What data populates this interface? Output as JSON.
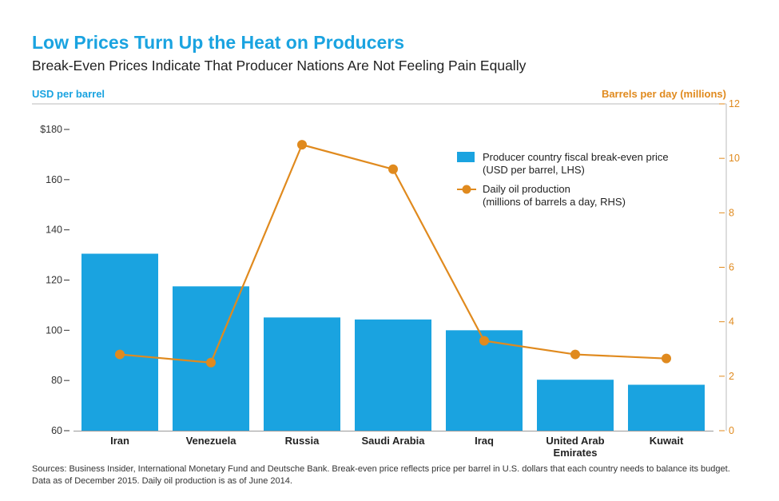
{
  "header": {
    "title": "Low Prices Turn Up the Heat on Producers",
    "subtitle": "Break-Even Prices Indicate That Producer Nations Are Not Feeling Pain Equally"
  },
  "axis_units": {
    "left": "USD per barrel",
    "right": "Barrels per day (millions)"
  },
  "footer": {
    "sources": "Sources: Business Insider, International Monetary Fund and Deutsche Bank. Break-even price reflects price per barrel in U.S. dollars that each country needs to balance its budget. Data as of December 2015. Daily oil production is as of June 2014."
  },
  "colors": {
    "bar": "#1aa3e0",
    "line": "#e08a1e",
    "title": "#1aa3e0",
    "axis": "#999999"
  },
  "chart_data": {
    "type": "bar",
    "title": "Low Prices Turn Up the Heat on Producers",
    "subtitle": "Break-Even Prices Indicate That Producer Nations Are Not Feeling Pain Equally",
    "categories": [
      "Iran",
      "Venezuela",
      "Russia",
      "Saudi Arabia",
      "Iraq",
      "United Arab Emirates",
      "Kuwait"
    ],
    "category_labels": [
      [
        "Iran"
      ],
      [
        "Venezuela"
      ],
      [
        "Russia"
      ],
      [
        "Saudi Arabia"
      ],
      [
        "Iraq"
      ],
      [
        "United Arab",
        "Emirates"
      ],
      [
        "Kuwait"
      ]
    ],
    "series": [
      {
        "name": "Producer country fiscal break-even price (USD per barrel, LHS)",
        "legend_lines": [
          "Producer country fiscal break-even price",
          "(USD per barrel, LHS)"
        ],
        "type": "bar",
        "axis": "left",
        "values": [
          130.5,
          117.5,
          105.1,
          104.3,
          100.0,
          80.3,
          78.3
        ]
      },
      {
        "name": "Daily oil production (millions of barrels a day, RHS)",
        "legend_lines": [
          "Daily oil production",
          "(millions of barrels a day, RHS)"
        ],
        "type": "line",
        "axis": "right",
        "values": [
          2.8,
          2.5,
          10.5,
          9.6,
          3.3,
          2.8,
          2.65
        ]
      }
    ],
    "y_left": {
      "label": "USD per barrel",
      "ylim": [
        60,
        190
      ],
      "ticks": [
        60,
        80,
        100,
        120,
        140,
        160,
        180
      ],
      "tick_labels": [
        "60",
        "80",
        "100",
        "120",
        "140",
        "160",
        "$180"
      ]
    },
    "y_right": {
      "label": "Barrels per day (millions)",
      "ylim": [
        0,
        12
      ],
      "ticks": [
        0,
        2,
        4,
        6,
        8,
        10,
        12
      ],
      "tick_labels": [
        "0",
        "2",
        "4",
        "6",
        "8",
        "10",
        "12"
      ]
    },
    "legend_position": "top-right",
    "grid": false
  }
}
